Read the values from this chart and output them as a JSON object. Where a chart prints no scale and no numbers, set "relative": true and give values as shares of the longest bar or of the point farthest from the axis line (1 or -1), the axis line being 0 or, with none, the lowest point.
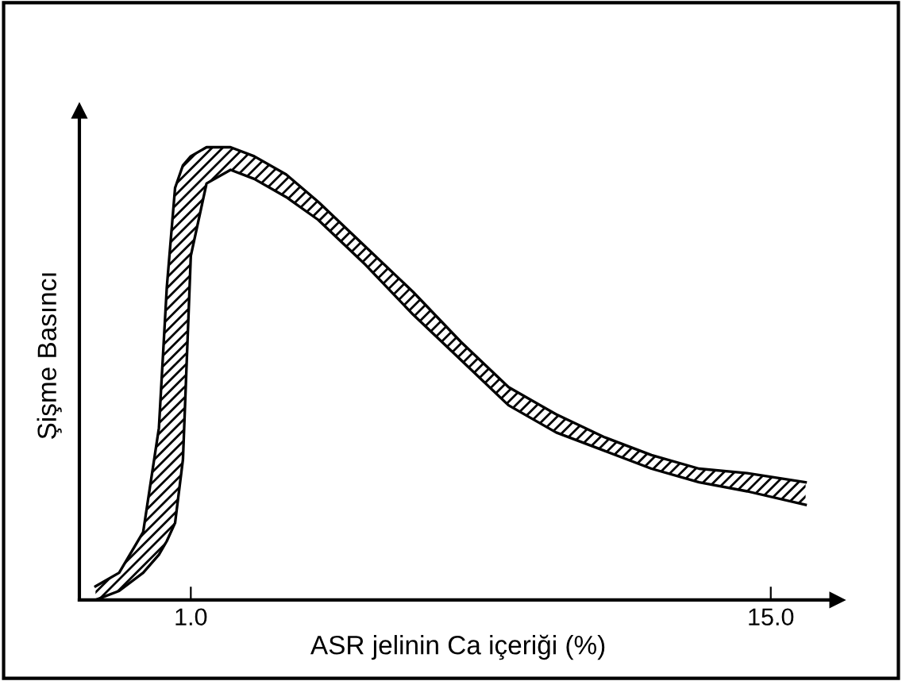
{
  "chart_data": {
    "type": "area",
    "relative": true,
    "stacked": true,
    "xlabel": "ASR jelinin Ca içeriği (%)",
    "ylabel": "Şişme Basıncı",
    "x": [
      -1.3,
      -0.73,
      -0.15,
      0.23,
      0.42,
      0.62,
      0.81,
      1.0,
      1.38,
      1.96,
      2.53,
      3.3,
      4.07,
      5.22,
      6.37,
      7.52,
      8.67,
      9.82,
      10.97,
      12.12,
      13.27,
      14.43,
      15.84
    ],
    "series": [
      {
        "color": "#ffffff",
        "values": [
          0,
          0.02,
          0.06,
          0.1,
          0.13,
          0.17,
          0.31,
          0.76,
          0.92,
          0.95,
          0.93,
          0.89,
          0.84,
          0.74,
          0.63,
          0.53,
          0.43,
          0.37,
          0.33,
          0.29,
          0.26,
          0.24,
          0.21
        ]
      },
      {
        "color": "#000000",
        "values": [
          0.03,
          0.04,
          0.09,
          0.28,
          0.56,
          0.74,
          0.65,
          0.22,
          0.08,
          0.05,
          0.05,
          0.05,
          0.04,
          0.04,
          0.05,
          0.04,
          0.04,
          0.04,
          0.03,
          0.03,
          0.03,
          0.04,
          0.05
        ]
      }
    ],
    "xlim": [
      -1.69,
      16.6
    ],
    "xticks": [
      {
        "value": 1,
        "label": "1.0"
      },
      {
        "value": 15,
        "label": "15.0"
      }
    ],
    "grid": false,
    "legend": false
  }
}
